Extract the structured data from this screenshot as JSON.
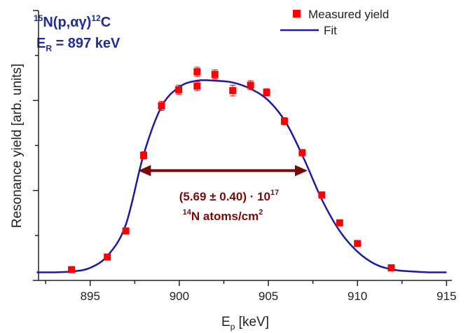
{
  "chart_data": {
    "type": "scatter",
    "reaction": {
      "mass_a": "15",
      "part_a": "N(p,αγ)",
      "mass_b": "12",
      "part_b": "C"
    },
    "resonance": {
      "symbol": "E",
      "subscript": "R",
      "text": " = 897 keV"
    },
    "x_label": {
      "symbol": "E",
      "subscript": "p",
      "text": " [keV]"
    },
    "y_label": "Resonance yield [arb. units]",
    "annotation": {
      "line1": "(5.69 ± 0.40) · 10",
      "line1_sup": "17",
      "line2_sup": "14",
      "line2": "N atoms/cm",
      "line2_sup2": "2"
    },
    "fwhm_arrow": {
      "x": [
        897.7,
        907.2
      ],
      "y": 1.22,
      "color": "#7a0a0a"
    },
    "xlim": [
      892.1,
      915.3
    ],
    "xticks": [
      895,
      900,
      905,
      910,
      915
    ],
    "xminor_ticks": [
      892.5,
      897.5,
      902.5,
      907.5,
      912.5
    ],
    "ylim": [
      0,
      3
    ],
    "yticks": [
      0,
      1,
      2,
      3
    ],
    "yminor_ticks": [
      0.5,
      1.5,
      2.5
    ],
    "legend": "top-right",
    "series": [
      {
        "name": "Measured yield",
        "color": "#ff0000",
        "x": [
          893.95,
          895.96,
          897.0,
          898.0,
          899.0,
          899.97,
          901.0,
          901.0,
          902.0,
          903.0,
          904.0,
          904.9,
          905.9,
          906.9,
          908.0,
          909.0,
          910.0,
          911.9
        ],
        "values": [
          0.12,
          0.26,
          0.55,
          1.39,
          1.94,
          2.12,
          2.32,
          2.16,
          2.29,
          2.11,
          2.17,
          2.09,
          1.77,
          1.42,
          0.95,
          0.64,
          0.41,
          0.14
        ],
        "errors": [
          0.02,
          0.02,
          0.03,
          0.04,
          0.05,
          0.05,
          0.05,
          0.05,
          0.05,
          0.06,
          0.05,
          0.04,
          0.04,
          0.03,
          0.03,
          0.03,
          0.02,
          0.02
        ]
      },
      {
        "name": "Fit",
        "color": "#1a1aa6",
        "x": [
          892,
          893,
          894,
          895,
          896,
          897,
          898,
          899,
          900,
          901,
          902,
          903,
          904,
          905,
          906,
          907,
          908,
          909,
          910,
          911,
          912,
          913,
          914,
          915
        ],
        "values": [
          0.09,
          0.09,
          0.1,
          0.14,
          0.28,
          0.62,
          1.4,
          1.93,
          2.15,
          2.22,
          2.22,
          2.2,
          2.13,
          2.0,
          1.75,
          1.35,
          0.9,
          0.55,
          0.32,
          0.18,
          0.12,
          0.1,
          0.09,
          0.09
        ]
      }
    ]
  }
}
